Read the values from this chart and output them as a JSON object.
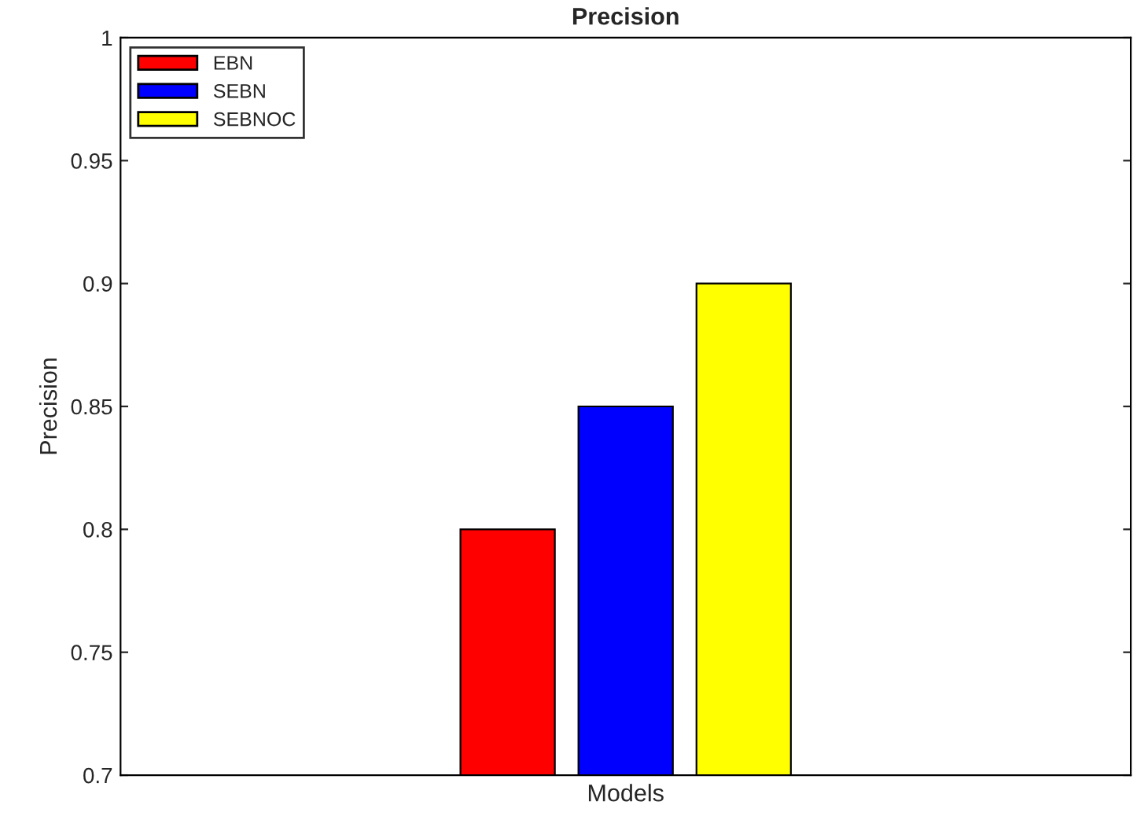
{
  "chart_data": {
    "type": "bar",
    "title": "Precision",
    "xlabel": "Models",
    "ylabel": "Precision",
    "categories": [
      null
    ],
    "series": [
      {
        "name": "EBN",
        "color": "#ff0000",
        "values": [
          0.8
        ]
      },
      {
        "name": "SEBN",
        "color": "#0000ff",
        "values": [
          0.85
        ]
      },
      {
        "name": "SEBNOC",
        "color": "#ffff00",
        "values": [
          0.9
        ]
      }
    ],
    "ylim": [
      0.7,
      1
    ],
    "yticks": [
      0.7,
      0.75,
      0.8,
      0.85,
      0.9,
      0.95,
      1
    ],
    "legend": "top left",
    "tick_labels": "y"
  }
}
